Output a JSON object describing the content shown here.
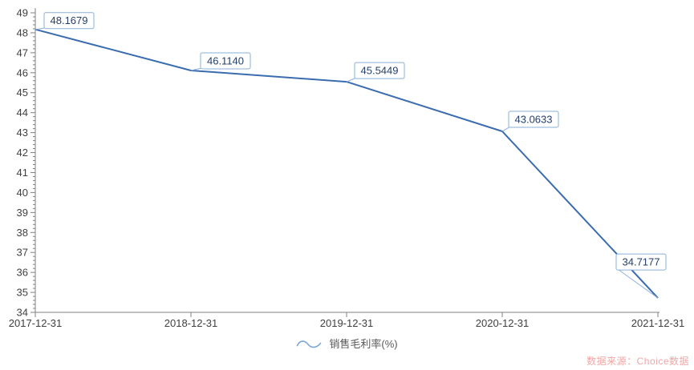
{
  "chart_data": {
    "type": "line",
    "title": "",
    "xlabel": "",
    "ylabel": "",
    "categories": [
      "2017-12-31",
      "2018-12-31",
      "2019-12-31",
      "2020-12-31",
      "2021-12-31"
    ],
    "series": [
      {
        "name": "销售毛利率(%)",
        "values": [
          48.1679,
          46.114,
          45.5449,
          43.0633,
          34.7177
        ],
        "point_labels": [
          "48.1679",
          "46.1140",
          "45.5449",
          "43.0633",
          "34.7177"
        ]
      }
    ],
    "ylim": [
      34,
      49
    ],
    "y_major_step": 1,
    "y_minor_step": 0.2,
    "grid": false,
    "legend_position": "bottom-center",
    "data_label_boxes": true
  },
  "watermark": {
    "text": "数据来源：Choice数据"
  },
  "colors": {
    "line": "#3a6caf",
    "label_box_border": "#8ab1da",
    "label_box_fill": "#ffffff",
    "label_text": "#24406b",
    "axis": "#808080",
    "tick_label": "#404040",
    "legend_text": "#595959",
    "legend_icon": "#7da7d8",
    "watermark": "#f0a6a5",
    "background": "#ffffff"
  }
}
